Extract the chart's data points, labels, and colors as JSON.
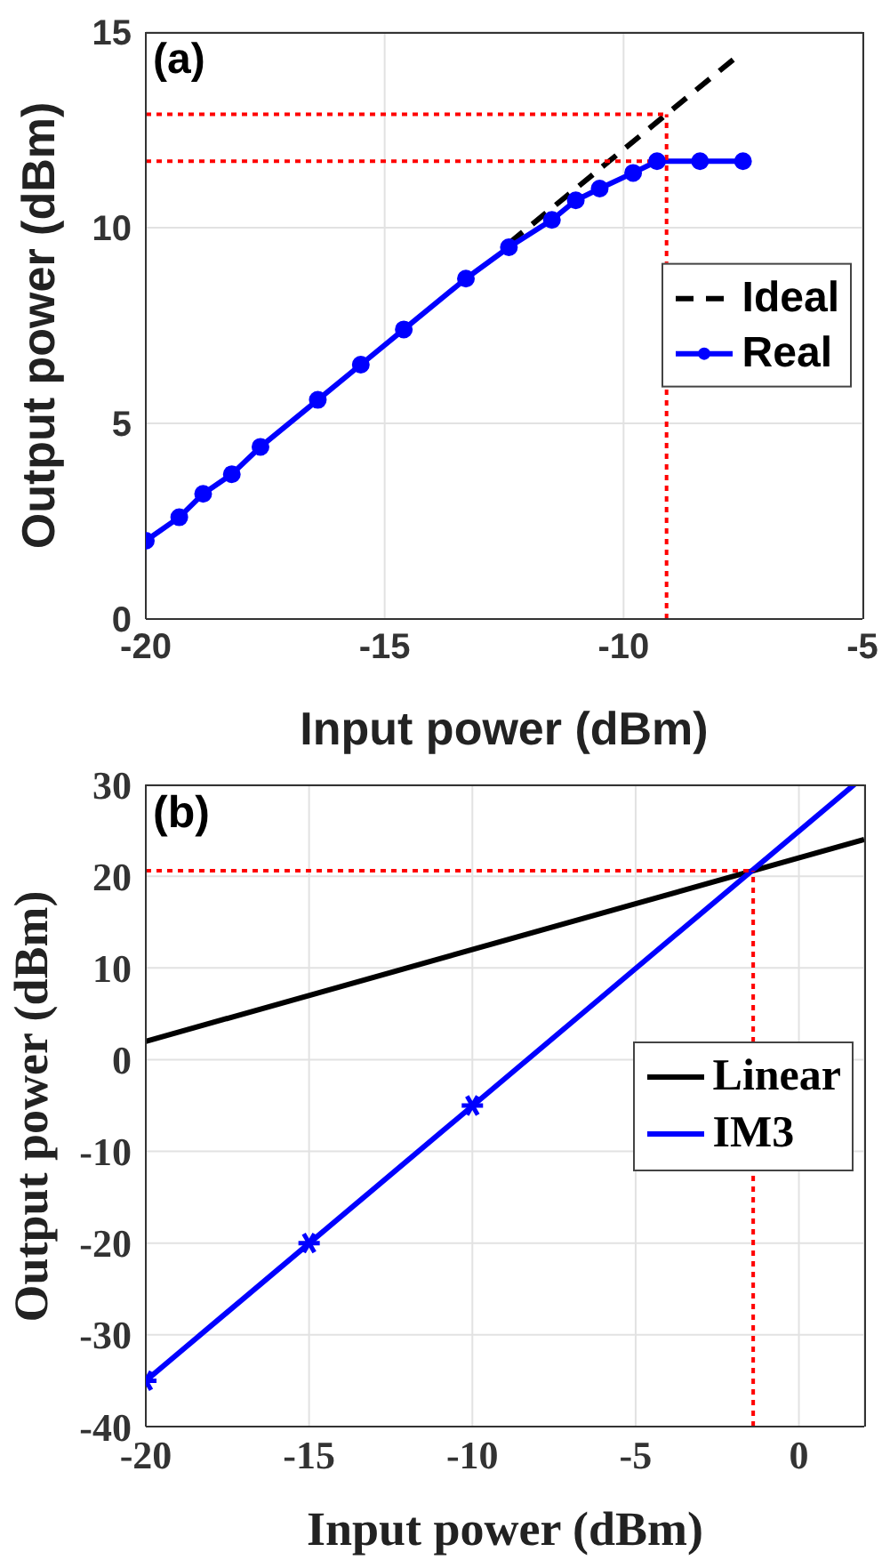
{
  "chart_data": [
    {
      "type": "line",
      "xlabel": "Input power (dBm)",
      "ylabel": "Output power (dBm)",
      "annotations": [
        "(a)"
      ],
      "xlim": [
        -20,
        -5
      ],
      "xticks": [
        -20,
        -15,
        -10,
        -5
      ],
      "ylim": [
        0,
        15
      ],
      "yticks": [
        0,
        5,
        10,
        15
      ],
      "grid": true,
      "legend": "right",
      "series": [
        {
          "name": "Ideal",
          "color": "#000000",
          "line_style": "dashed",
          "x": [
            -12.4,
            -7.7
          ],
          "values": [
            9.6,
            14.3
          ]
        },
        {
          "name": "Real",
          "color": "#0000ff",
          "marker": "circle",
          "x": [
            -20,
            -19.3,
            -18.8,
            -18.2,
            -17.6,
            -16.4,
            -15.5,
            -14.6,
            -13.3,
            -12.4,
            -11.5,
            -11.0,
            -10.5,
            -9.8,
            -9.3,
            -8.4,
            -7.5
          ],
          "values": [
            2.0,
            2.6,
            3.2,
            3.7,
            4.4,
            5.6,
            6.5,
            7.4,
            8.7,
            9.5,
            10.2,
            10.7,
            11.0,
            11.4,
            11.7,
            11.7,
            11.7
          ]
        },
        {
          "color": "#ff0000",
          "line_style": "dotted",
          "x": [
            -20,
            -9.1
          ],
          "values": [
            12.9,
            12.9
          ]
        },
        {
          "color": "#ff0000",
          "line_style": "dotted",
          "x": [
            -20,
            -9.1
          ],
          "values": [
            11.7,
            11.7
          ]
        },
        {
          "color": "#ff0000",
          "line_style": "dotted",
          "x": [
            -9.1,
            -9.1
          ],
          "values": [
            0,
            12.9
          ]
        }
      ]
    },
    {
      "type": "line",
      "xlabel": "Input power (dBm)",
      "ylabel": "Output power (dBm)",
      "annotations": [
        "(b)"
      ],
      "xlim": [
        -20,
        2
      ],
      "xticks": [
        -20,
        -15,
        -10,
        -5,
        0
      ],
      "ylim": [
        -40,
        30
      ],
      "yticks": [
        -40,
        -30,
        -20,
        -10,
        0,
        10,
        20,
        30
      ],
      "grid": true,
      "legend": "right",
      "series": [
        {
          "name": "Linear",
          "color": "#000000",
          "x": [
            -20,
            2
          ],
          "values": [
            2,
            24
          ]
        },
        {
          "name": "IM3",
          "color": "#0000ff",
          "x": [
            -20,
            1.7
          ],
          "values": [
            -35,
            30
          ]
        },
        {
          "type": "scatter",
          "color": "#0000ff",
          "marker": "cross",
          "x": [
            -20,
            -15,
            -10
          ],
          "values": [
            -35,
            -20,
            -5
          ]
        },
        {
          "color": "#ff0000",
          "line_style": "dotted",
          "x": [
            -20,
            -1.4
          ],
          "values": [
            20.6,
            20.6
          ]
        },
        {
          "color": "#ff0000",
          "line_style": "dotted",
          "x": [
            -1.4,
            -1.4
          ],
          "values": [
            -40,
            20.6
          ]
        }
      ]
    }
  ]
}
